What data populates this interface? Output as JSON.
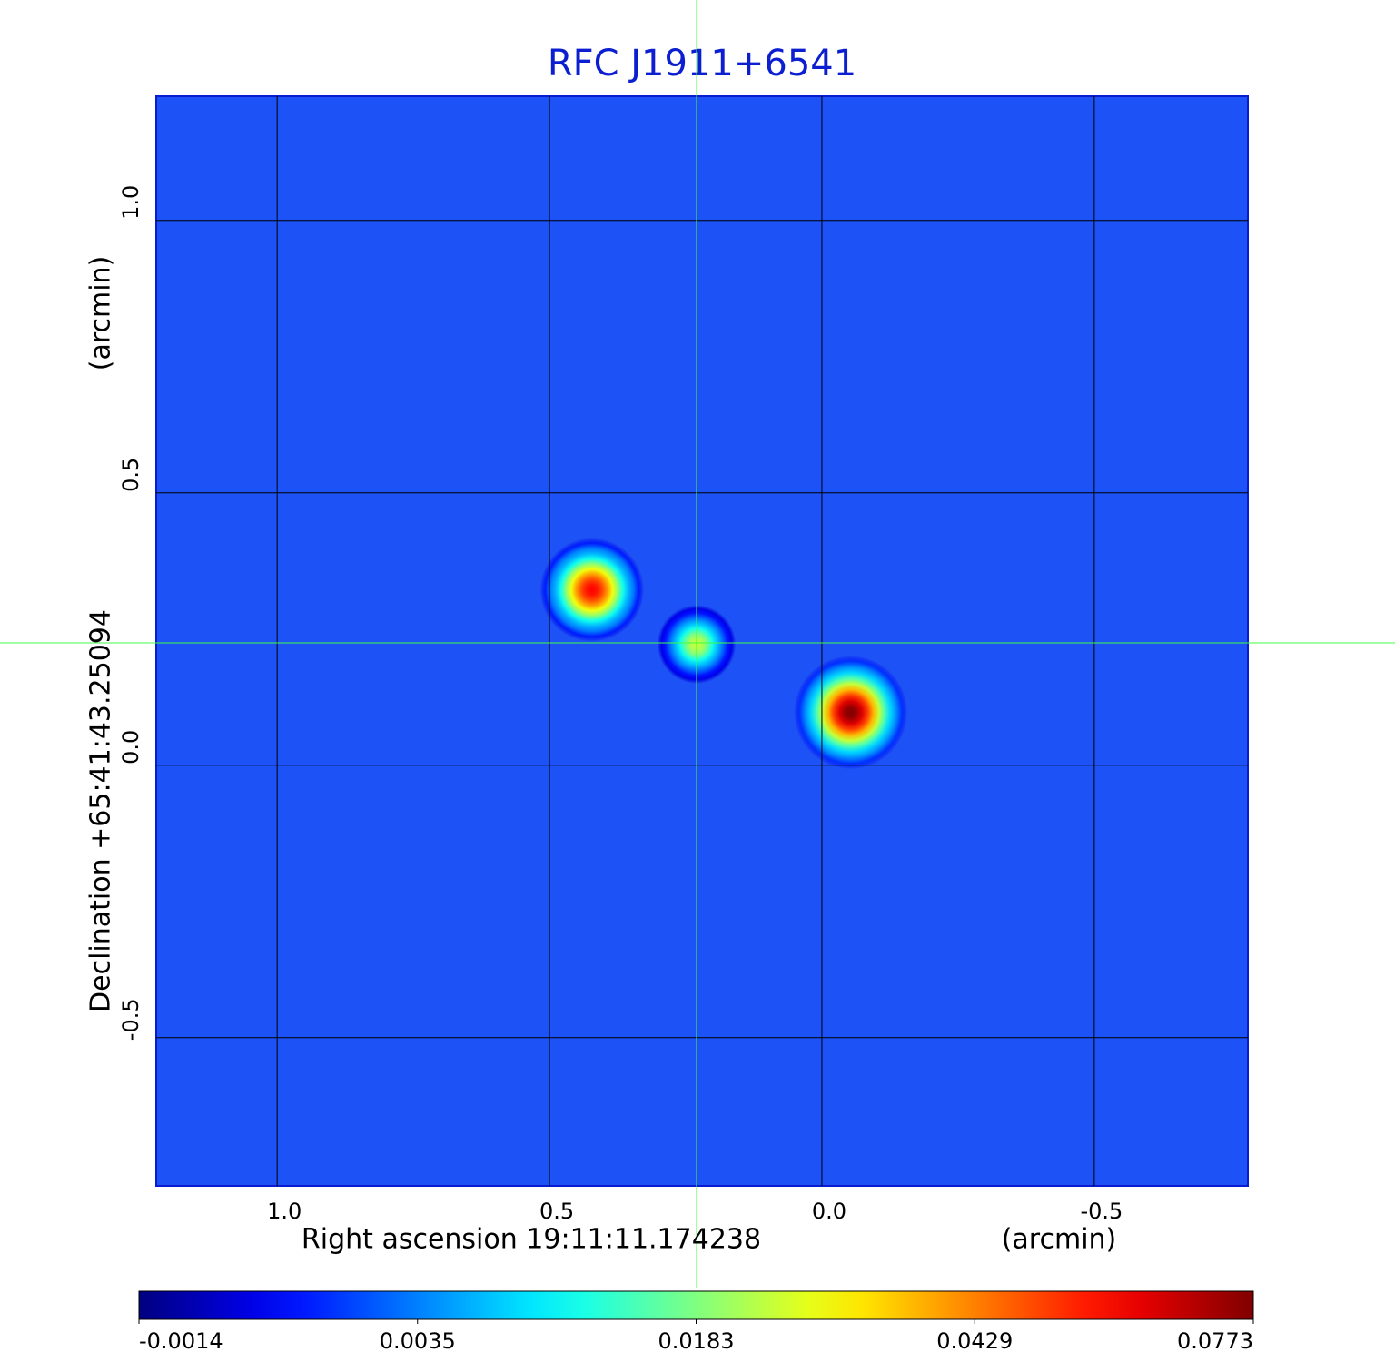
{
  "chart_data": {
    "type": "image",
    "title": "RFC J1911+6541",
    "xlabel": "Right ascension  19:11:11.174238",
    "xunit": "(arcmin)",
    "ylabel": "Declination  +65:41:43.25094",
    "yunit": "(arcmin)",
    "xlim": [
      1.222,
      -0.782
    ],
    "ylim": [
      -0.772,
      1.228
    ],
    "xticks": [
      {
        "value": 1,
        "label": "1.0"
      },
      0.5,
      {
        "value": 0,
        "label": "0.0"
      },
      -0.5
    ],
    "yticks": [
      {
        "value": 1,
        "label": "1.0"
      },
      0.5,
      {
        "value": 0,
        "label": "0.0"
      },
      -0.5
    ],
    "grid": true,
    "sources": [
      {
        "x": 0.422,
        "y": 0.322,
        "peak": 0.06
      },
      {
        "x": 0.23,
        "y": 0.222,
        "peak": 0.025
      },
      {
        "x": -0.053,
        "y": 0.097,
        "peak": 0.0773
      }
    ],
    "colorbar": {
      "colormap": "jet",
      "ticks": [
        -0.0014,
        0.0035,
        0.0183,
        0.0429,
        0.0773
      ]
    }
  }
}
